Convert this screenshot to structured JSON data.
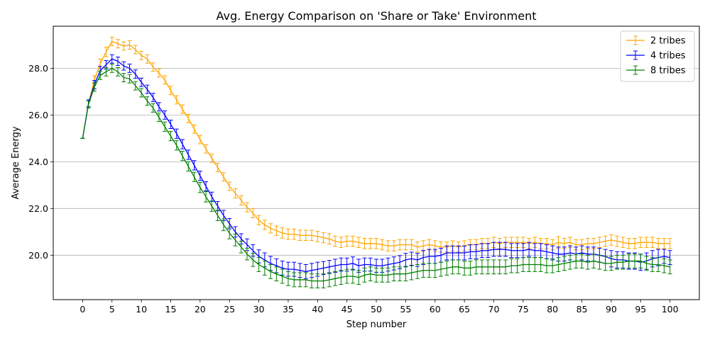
{
  "chart_data": {
    "type": "line",
    "title": "Avg. Energy Comparison on 'Share or Take' Environment",
    "xlabel": "Step number",
    "ylabel": "Average Energy",
    "xlim": [
      -5,
      105
    ],
    "ylim": [
      18.1,
      29.8
    ],
    "xticks": [
      0,
      5,
      10,
      15,
      20,
      25,
      30,
      35,
      40,
      45,
      50,
      55,
      60,
      65,
      70,
      75,
      80,
      85,
      90,
      95,
      100
    ],
    "xtick_labels": [
      "0",
      "5",
      "10",
      "15",
      "20",
      "25",
      "30",
      "35",
      "40",
      "45",
      "50",
      "55",
      "60",
      "65",
      "70",
      "75",
      "80",
      "85",
      "90",
      "95",
      "100"
    ],
    "yticks": [
      20.0,
      22.0,
      24.0,
      26.0,
      28.0
    ],
    "ytick_labels": [
      "20.0",
      "22.0",
      "24.0",
      "26.0",
      "28.0"
    ],
    "grid": "y",
    "legend_position": "top-right",
    "error_bars": true,
    "series": [
      {
        "name": "2 tribes",
        "color": "#ffa500",
        "x": [
          0,
          1,
          2,
          3,
          4,
          5,
          6,
          7,
          8,
          9,
          10,
          11,
          12,
          13,
          14,
          15,
          16,
          17,
          18,
          19,
          20,
          21,
          22,
          23,
          24,
          25,
          26,
          27,
          28,
          29,
          30,
          31,
          32,
          33,
          34,
          35,
          36,
          37,
          38,
          39,
          40,
          41,
          42,
          43,
          44,
          45,
          46,
          47,
          48,
          49,
          50,
          51,
          52,
          53,
          54,
          55,
          56,
          57,
          58,
          59,
          60,
          61,
          62,
          63,
          64,
          65,
          66,
          67,
          68,
          69,
          70,
          71,
          72,
          73,
          74,
          75,
          76,
          77,
          78,
          79,
          80,
          81,
          82,
          83,
          84,
          85,
          86,
          87,
          88,
          89,
          90,
          91,
          92,
          93,
          94,
          95,
          96,
          97,
          98,
          99,
          100
        ],
        "values": [
          25.0,
          26.5,
          27.5,
          28.2,
          28.7,
          29.15,
          29.05,
          28.95,
          29.0,
          28.8,
          28.55,
          28.4,
          28.05,
          27.8,
          27.5,
          27.05,
          26.65,
          26.25,
          25.85,
          25.4,
          24.95,
          24.55,
          24.15,
          23.75,
          23.35,
          22.95,
          22.65,
          22.35,
          22.05,
          21.8,
          21.5,
          21.3,
          21.15,
          21.05,
          20.95,
          20.9,
          20.9,
          20.85,
          20.85,
          20.85,
          20.8,
          20.75,
          20.7,
          20.6,
          20.55,
          20.6,
          20.6,
          20.55,
          20.5,
          20.5,
          20.5,
          20.45,
          20.4,
          20.4,
          20.45,
          20.45,
          20.45,
          20.35,
          20.4,
          20.45,
          20.4,
          20.35,
          20.35,
          20.4,
          20.35,
          20.4,
          20.45,
          20.45,
          20.5,
          20.5,
          20.55,
          20.5,
          20.55,
          20.55,
          20.55,
          20.55,
          20.5,
          20.55,
          20.5,
          20.5,
          20.45,
          20.55,
          20.5,
          20.55,
          20.45,
          20.45,
          20.5,
          20.5,
          20.55,
          20.6,
          20.65,
          20.6,
          20.55,
          20.5,
          20.5,
          20.55,
          20.55,
          20.55,
          20.5,
          20.5,
          20.5
        ],
        "errors": [
          0.0,
          0.15,
          0.18,
          0.2,
          0.2,
          0.18,
          0.18,
          0.18,
          0.18,
          0.18,
          0.18,
          0.18,
          0.18,
          0.18,
          0.18,
          0.18,
          0.18,
          0.18,
          0.18,
          0.18,
          0.18,
          0.18,
          0.18,
          0.18,
          0.18,
          0.18,
          0.2,
          0.2,
          0.2,
          0.2,
          0.2,
          0.2,
          0.2,
          0.2,
          0.22,
          0.22,
          0.22,
          0.22,
          0.22,
          0.22,
          0.22,
          0.22,
          0.22,
          0.22,
          0.22,
          0.22,
          0.22,
          0.22,
          0.22,
          0.22,
          0.22,
          0.22,
          0.22,
          0.22,
          0.22,
          0.22,
          0.22,
          0.22,
          0.22,
          0.22,
          0.22,
          0.22,
          0.22,
          0.22,
          0.22,
          0.22,
          0.22,
          0.22,
          0.22,
          0.22,
          0.22,
          0.22,
          0.22,
          0.22,
          0.22,
          0.22,
          0.22,
          0.22,
          0.22,
          0.22,
          0.22,
          0.25,
          0.22,
          0.22,
          0.22,
          0.22,
          0.22,
          0.22,
          0.22,
          0.22,
          0.22,
          0.22,
          0.22,
          0.22,
          0.22,
          0.22,
          0.22,
          0.22,
          0.22,
          0.22,
          0.22
        ]
      },
      {
        "name": "4 tribes",
        "color": "#0000ff",
        "x": [
          0,
          1,
          2,
          3,
          4,
          5,
          6,
          7,
          8,
          9,
          10,
          11,
          12,
          13,
          14,
          15,
          16,
          17,
          18,
          19,
          20,
          21,
          22,
          23,
          24,
          25,
          26,
          27,
          28,
          29,
          30,
          31,
          32,
          33,
          34,
          35,
          36,
          37,
          38,
          39,
          40,
          41,
          42,
          43,
          44,
          45,
          46,
          47,
          48,
          49,
          50,
          51,
          52,
          53,
          54,
          55,
          56,
          57,
          58,
          59,
          60,
          61,
          62,
          63,
          64,
          65,
          66,
          67,
          68,
          69,
          70,
          71,
          72,
          73,
          74,
          75,
          76,
          77,
          78,
          79,
          80,
          81,
          82,
          83,
          84,
          85,
          86,
          87,
          88,
          89,
          90,
          91,
          92,
          93,
          94,
          95,
          96,
          97,
          98,
          99,
          100
        ],
        "values": [
          25.0,
          26.5,
          27.3,
          27.9,
          28.15,
          28.4,
          28.3,
          28.1,
          28.0,
          27.75,
          27.4,
          27.1,
          26.75,
          26.35,
          26.0,
          25.6,
          25.2,
          24.75,
          24.3,
          23.85,
          23.4,
          22.95,
          22.5,
          22.1,
          21.7,
          21.35,
          21.0,
          20.7,
          20.45,
          20.2,
          19.95,
          19.8,
          19.65,
          19.55,
          19.45,
          19.4,
          19.4,
          19.35,
          19.3,
          19.35,
          19.4,
          19.45,
          19.5,
          19.55,
          19.6,
          19.6,
          19.65,
          19.55,
          19.6,
          19.6,
          19.55,
          19.55,
          19.6,
          19.65,
          19.7,
          19.8,
          19.85,
          19.8,
          19.9,
          19.95,
          19.95,
          20.0,
          20.1,
          20.1,
          20.1,
          20.1,
          20.15,
          20.15,
          20.2,
          20.2,
          20.25,
          20.25,
          20.25,
          20.2,
          20.2,
          20.2,
          20.25,
          20.2,
          20.2,
          20.15,
          20.1,
          20.05,
          20.05,
          20.1,
          20.05,
          20.1,
          20.05,
          20.05,
          20.0,
          19.95,
          19.85,
          19.8,
          19.8,
          19.75,
          19.75,
          19.7,
          19.75,
          19.85,
          19.9,
          19.95,
          19.9
        ],
        "errors": [
          0.0,
          0.15,
          0.18,
          0.18,
          0.18,
          0.18,
          0.18,
          0.18,
          0.18,
          0.18,
          0.18,
          0.18,
          0.18,
          0.18,
          0.18,
          0.18,
          0.2,
          0.2,
          0.2,
          0.2,
          0.2,
          0.2,
          0.2,
          0.2,
          0.22,
          0.22,
          0.22,
          0.22,
          0.25,
          0.25,
          0.28,
          0.3,
          0.3,
          0.3,
          0.3,
          0.3,
          0.3,
          0.3,
          0.3,
          0.3,
          0.3,
          0.28,
          0.28,
          0.28,
          0.28,
          0.28,
          0.28,
          0.28,
          0.28,
          0.28,
          0.28,
          0.28,
          0.28,
          0.28,
          0.28,
          0.28,
          0.28,
          0.28,
          0.3,
          0.3,
          0.3,
          0.3,
          0.3,
          0.3,
          0.3,
          0.3,
          0.3,
          0.3,
          0.3,
          0.3,
          0.3,
          0.3,
          0.3,
          0.3,
          0.3,
          0.3,
          0.3,
          0.3,
          0.3,
          0.3,
          0.3,
          0.3,
          0.3,
          0.3,
          0.3,
          0.3,
          0.3,
          0.3,
          0.3,
          0.3,
          0.35,
          0.35,
          0.35,
          0.35,
          0.35,
          0.35,
          0.35,
          0.35,
          0.35,
          0.3,
          0.3
        ]
      },
      {
        "name": "8 tribes",
        "color": "#008000",
        "x": [
          0,
          1,
          2,
          3,
          4,
          5,
          6,
          7,
          8,
          9,
          10,
          11,
          12,
          13,
          14,
          15,
          16,
          17,
          18,
          19,
          20,
          21,
          22,
          23,
          24,
          25,
          26,
          27,
          28,
          29,
          30,
          31,
          32,
          33,
          34,
          35,
          36,
          37,
          38,
          39,
          40,
          41,
          42,
          43,
          44,
          45,
          46,
          47,
          48,
          49,
          50,
          51,
          52,
          53,
          54,
          55,
          56,
          57,
          58,
          59,
          60,
          61,
          62,
          63,
          64,
          65,
          66,
          67,
          68,
          69,
          70,
          71,
          72,
          73,
          74,
          75,
          76,
          77,
          78,
          79,
          80,
          81,
          82,
          83,
          84,
          85,
          86,
          87,
          88,
          89,
          90,
          91,
          92,
          93,
          94,
          95,
          96,
          97,
          98,
          99,
          100
        ],
        "values": [
          25.0,
          26.45,
          27.2,
          27.7,
          27.85,
          28.0,
          27.85,
          27.6,
          27.55,
          27.25,
          26.95,
          26.6,
          26.3,
          25.9,
          25.5,
          25.1,
          24.7,
          24.25,
          23.8,
          23.35,
          22.9,
          22.5,
          22.1,
          21.7,
          21.3,
          20.95,
          20.65,
          20.35,
          20.05,
          19.8,
          19.6,
          19.45,
          19.3,
          19.2,
          19.1,
          19.0,
          18.95,
          18.95,
          18.95,
          18.9,
          18.9,
          18.9,
          18.95,
          19.0,
          19.05,
          19.1,
          19.1,
          19.05,
          19.15,
          19.2,
          19.15,
          19.15,
          19.15,
          19.2,
          19.2,
          19.2,
          19.25,
          19.3,
          19.35,
          19.35,
          19.35,
          19.4,
          19.45,
          19.5,
          19.5,
          19.45,
          19.45,
          19.5,
          19.5,
          19.5,
          19.5,
          19.5,
          19.5,
          19.55,
          19.55,
          19.6,
          19.6,
          19.6,
          19.6,
          19.55,
          19.55,
          19.6,
          19.65,
          19.7,
          19.75,
          19.75,
          19.7,
          19.75,
          19.7,
          19.65,
          19.65,
          19.7,
          19.7,
          19.75,
          19.75,
          19.75,
          19.65,
          19.6,
          19.6,
          19.55,
          19.5
        ],
        "errors": [
          0.0,
          0.15,
          0.18,
          0.18,
          0.18,
          0.18,
          0.18,
          0.18,
          0.18,
          0.18,
          0.18,
          0.18,
          0.18,
          0.18,
          0.2,
          0.2,
          0.2,
          0.2,
          0.2,
          0.2,
          0.22,
          0.22,
          0.22,
          0.22,
          0.25,
          0.25,
          0.25,
          0.25,
          0.25,
          0.28,
          0.3,
          0.3,
          0.3,
          0.3,
          0.3,
          0.3,
          0.3,
          0.3,
          0.3,
          0.3,
          0.3,
          0.3,
          0.3,
          0.3,
          0.3,
          0.3,
          0.3,
          0.3,
          0.3,
          0.3,
          0.3,
          0.3,
          0.3,
          0.3,
          0.3,
          0.3,
          0.3,
          0.3,
          0.3,
          0.3,
          0.3,
          0.3,
          0.3,
          0.3,
          0.3,
          0.3,
          0.3,
          0.3,
          0.3,
          0.3,
          0.3,
          0.3,
          0.3,
          0.3,
          0.3,
          0.3,
          0.3,
          0.3,
          0.3,
          0.3,
          0.3,
          0.3,
          0.3,
          0.3,
          0.3,
          0.3,
          0.3,
          0.3,
          0.3,
          0.3,
          0.3,
          0.3,
          0.3,
          0.3,
          0.3,
          0.3,
          0.3,
          0.3,
          0.3,
          0.3,
          0.3
        ]
      }
    ]
  }
}
